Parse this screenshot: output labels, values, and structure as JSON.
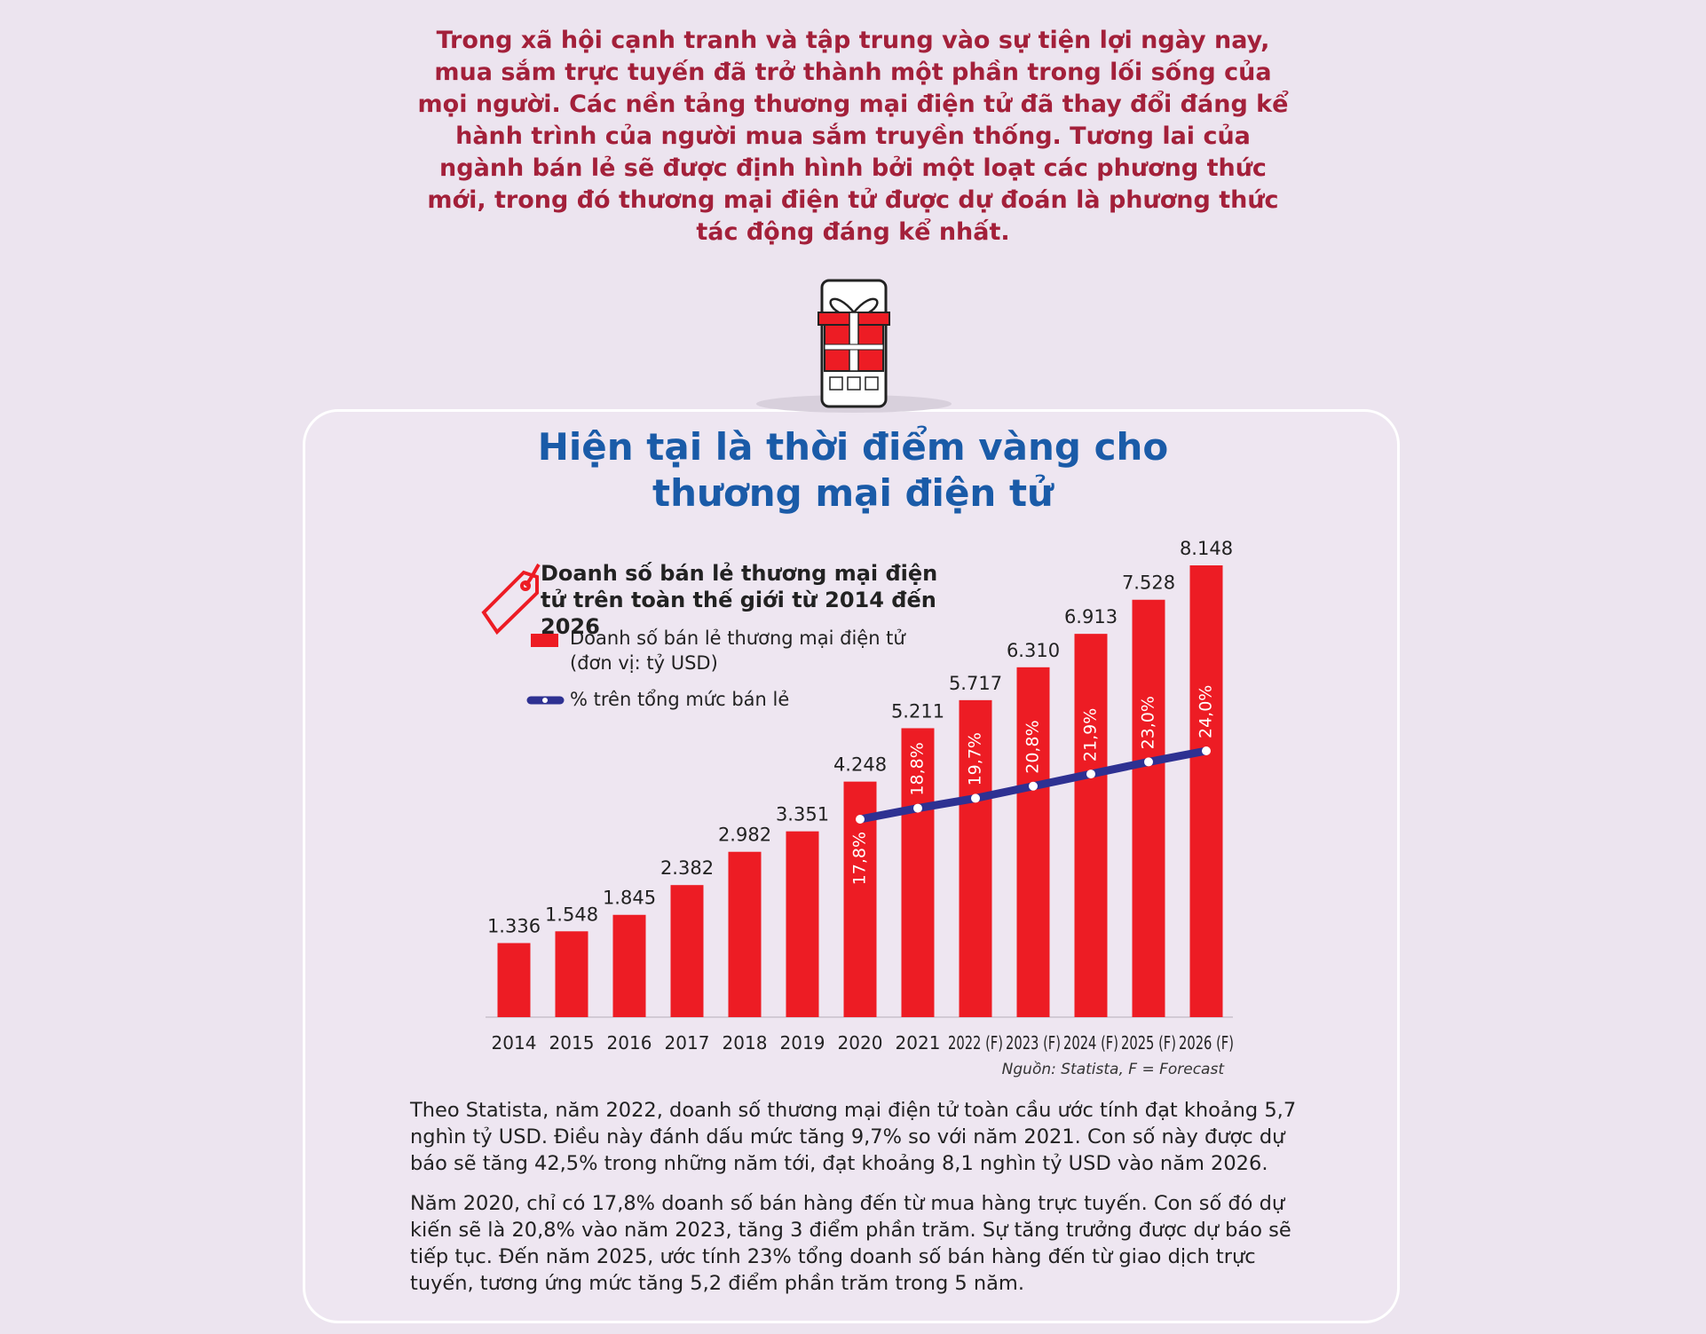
{
  "intro": "Trong xã hội cạnh tranh và tập trung vào sự tiện lợi ngày nay, mua sắm trực tuyến đã trở thành một phần trong lối sống của mọi người. Các nền tảng thương mại điện tử đã thay đổi đáng kể hành trình của người mua sắm truyền thống. Tương lai của ngành bán lẻ sẽ được định hình bởi một loạt các phương thức mới, trong đó thương mại điện tử được dự đoán là phương thức tác động đáng kể nhất.",
  "chart_data": {
    "type": "bar",
    "title": "Hiện tại là thời điểm vàng cho thương mại điện tử",
    "subtitle": "Doanh số bán lẻ thương mại điện tử trên toàn thế giới từ 2014 đến 2026",
    "categories": [
      "2014",
      "2015",
      "2016",
      "2017",
      "2018",
      "2019",
      "2020",
      "2021",
      "2022 (F)",
      "2023 (F)",
      "2024 (F)",
      "2025 (F)",
      "2026 (F)"
    ],
    "series": [
      {
        "name": "Doanh số bán lẻ thương mại điện tử (đơn vị: tỷ USD)",
        "type": "bar",
        "color": "#ed1c24",
        "values": [
          1336,
          1548,
          1845,
          2382,
          2982,
          3351,
          4248,
          5211,
          5717,
          6310,
          6913,
          7528,
          8148
        ],
        "value_labels": [
          "1.336",
          "1.548",
          "1.845",
          "2.382",
          "2.982",
          "3.351",
          "4.248",
          "5.211",
          "5.717",
          "6.310",
          "6.913",
          "7.528",
          "8.148"
        ]
      },
      {
        "name": "% trên tổng mức bán lẻ",
        "type": "line",
        "color": "#2e3192",
        "values": [
          null,
          null,
          null,
          null,
          null,
          null,
          17.8,
          18.8,
          19.7,
          20.8,
          21.9,
          23.0,
          24.0
        ],
        "value_labels": [
          null,
          null,
          null,
          null,
          null,
          null,
          "17,8%",
          "18,8%",
          "19,7%",
          "20,8%",
          "21,9%",
          "23,0%",
          "24,0%"
        ]
      }
    ],
    "source": "Nguồn: Statista, F = Forecast"
  },
  "body": [
    "Theo Statista, năm 2022, doanh số thương mại điện tử toàn cầu ước tính đạt khoảng 5,7 nghìn tỷ USD. Điều này đánh dấu mức tăng 9,7% so với năm 2021. Con số này được dự báo sẽ tăng 42,5% trong những năm tới, đạt khoảng 8,1 nghìn tỷ USD vào năm 2026.",
    "Năm 2020, chỉ có 17,8% doanh số bán hàng đến từ mua hàng trực tuyến. Con số đó dự kiến sẽ là 20,8% vào năm 2023, tăng 3 điểm phần trăm. Sự tăng trưởng được dự báo sẽ tiếp tục. Đến năm 2025, ước tính 23% tổng doanh số bán hàng đến từ giao dịch trực tuyến, tương ứng mức tăng 5,2 điểm phần trăm trong 5 năm."
  ]
}
